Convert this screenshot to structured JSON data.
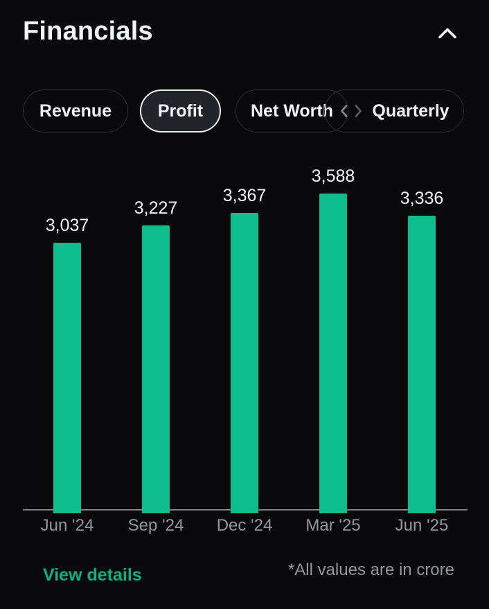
{
  "header": {
    "title": "Financials"
  },
  "filters": {
    "metric_tabs": [
      {
        "label": "Revenue",
        "selected": false
      },
      {
        "label": "Profit",
        "selected": true
      },
      {
        "label": "Net Worth",
        "selected": false
      }
    ],
    "period_selector": {
      "label": "Quarterly",
      "icon": "chevron-left-right"
    }
  },
  "chart_data": {
    "type": "bar",
    "title": "Profit — Quarterly",
    "categories": [
      "Jun '24",
      "Sep '24",
      "Dec '24",
      "Mar '25",
      "Jun '25"
    ],
    "values": [
      3037,
      3227,
      3367,
      3588,
      3336
    ],
    "value_labels": [
      "3,037",
      "3,227",
      "3,367",
      "3,588",
      "3,336"
    ],
    "xlabel": "",
    "ylabel": "",
    "ylim": [
      0,
      3588
    ],
    "grid": false,
    "legend": false,
    "bar_color": "#0dbd8b"
  },
  "footer": {
    "view_details_label": "View details",
    "note": "*All values are in crore"
  },
  "colors": {
    "background": "#0a0a0c",
    "accent_green": "#0dbd8b",
    "link_green": "#0cb181",
    "text_primary": "#f2f3f5",
    "text_secondary": "#95979a",
    "axis_line": "#98999b",
    "pill_border": "#2d2f33",
    "selected_pill_border": "#edeff1",
    "selected_pill_bg": "#212529"
  }
}
